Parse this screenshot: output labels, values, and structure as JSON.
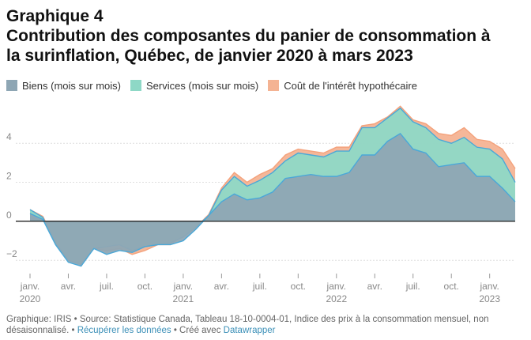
{
  "header": {
    "title_line1": "Graphique 4",
    "title_line2": "Contribution des composantes du panier de consommation à",
    "title_line3": "la surinflation, Québec, de janvier 2020 à mars 2023"
  },
  "footer": {
    "text1": "Graphique: IRIS • Source: Statistique Canada, Tableau 18-10-0004-01, Indice des prix à la consommation mensuel, non désaisonnalisé. • ",
    "link1": "Récupérer les données",
    "text2": " • Créé avec ",
    "link2": "Datawrapper"
  },
  "chart_data": {
    "type": "area",
    "title": "",
    "xlabel": "",
    "ylabel": "",
    "ylim": [
      -2.6,
      6.4
    ],
    "yticks": [
      -2,
      0,
      2,
      4
    ],
    "ytick_labels": [
      "−2",
      "0",
      "2",
      "4"
    ],
    "grid": true,
    "legend_position": "top-left",
    "x_start": "2020-01",
    "x_end": "2023-03",
    "x_ticks": [
      {
        "month": "2020-01",
        "label": "janv.",
        "year": "2020"
      },
      {
        "month": "2020-04",
        "label": "avr.",
        "year": ""
      },
      {
        "month": "2020-07",
        "label": "juil.",
        "year": ""
      },
      {
        "month": "2020-10",
        "label": "oct.",
        "year": ""
      },
      {
        "month": "2021-01",
        "label": "janv.",
        "year": "2021"
      },
      {
        "month": "2021-04",
        "label": "avr.",
        "year": ""
      },
      {
        "month": "2021-07",
        "label": "juil.",
        "year": ""
      },
      {
        "month": "2021-10",
        "label": "oct.",
        "year": ""
      },
      {
        "month": "2022-01",
        "label": "janv.",
        "year": "2022"
      },
      {
        "month": "2022-04",
        "label": "avr.",
        "year": ""
      },
      {
        "month": "2022-07",
        "label": "juil.",
        "year": ""
      },
      {
        "month": "2022-10",
        "label": "oct.",
        "year": ""
      },
      {
        "month": "2023-01",
        "label": "janv.",
        "year": "2023"
      }
    ],
    "series": [
      {
        "name": "Biens (mois sur mois)",
        "color": "#8ea6b4",
        "line_color": "#4aa8d8",
        "values": [
          0.4,
          0.1,
          -1.2,
          -2.1,
          -2.3,
          -1.4,
          -1.7,
          -1.5,
          -1.6,
          -1.3,
          -1.2,
          -1.2,
          -1.0,
          -0.4,
          0.3,
          1.0,
          1.4,
          1.1,
          1.2,
          1.5,
          2.2,
          2.3,
          2.4,
          2.3,
          2.3,
          2.5,
          3.4,
          3.4,
          4.1,
          4.5,
          3.7,
          3.5,
          2.8,
          2.9,
          3.0,
          2.3,
          2.3,
          1.7,
          1.0
        ]
      },
      {
        "name": "Services (mois sur mois)",
        "color": "#8ed8c6",
        "line_color": "#4aa8d8",
        "values": [
          0.6,
          0.2,
          -1.1,
          -2.0,
          -2.2,
          -1.4,
          -1.3,
          -1.2,
          -1.5,
          -1.3,
          -1.2,
          -1.1,
          -0.8,
          -0.3,
          0.3,
          1.6,
          2.3,
          1.8,
          2.1,
          2.5,
          3.1,
          3.5,
          3.4,
          3.3,
          3.6,
          3.6,
          4.8,
          4.8,
          5.3,
          5.8,
          5.1,
          4.8,
          4.2,
          4.0,
          4.3,
          3.8,
          3.7,
          3.2,
          2.0
        ]
      },
      {
        "name": "Coût de l'intérêt hypothécaire",
        "color": "#f4b393",
        "line_color": "#f4a27c",
        "values": [
          0.6,
          0.25,
          -1.0,
          -2.0,
          -2.1,
          -1.4,
          -1.5,
          -1.4,
          -1.7,
          -1.5,
          -1.2,
          -1.2,
          -0.7,
          -0.3,
          0.35,
          1.7,
          2.5,
          2.0,
          2.4,
          2.7,
          3.4,
          3.7,
          3.6,
          3.5,
          3.8,
          3.8,
          4.9,
          5.0,
          5.35,
          5.9,
          5.2,
          5.0,
          4.5,
          4.4,
          4.8,
          4.2,
          4.1,
          3.7,
          2.7
        ]
      }
    ]
  }
}
